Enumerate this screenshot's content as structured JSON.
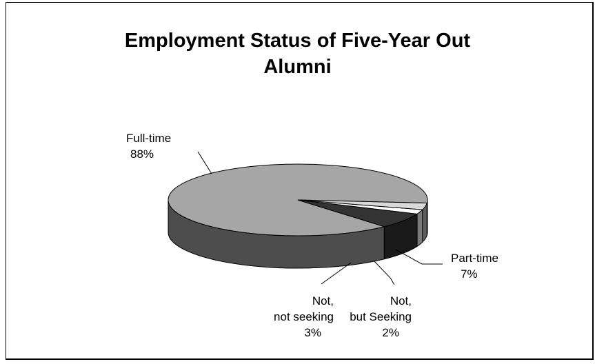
{
  "chart_data": {
    "type": "pie",
    "style": "3d",
    "title": "Employment Status of Five-Year Out\nAlumni",
    "slices": [
      {
        "label": "Full-time",
        "value": 88,
        "value_label": "88%",
        "color": "#a6a6a6",
        "side_color": "#4d4d4d"
      },
      {
        "label": "Part-time",
        "value": 7,
        "value_label": "7%",
        "color": "#333333",
        "side_color": "#1a1a1a"
      },
      {
        "label": "Not,\nbut Seeking",
        "value": 2,
        "value_label": "2%",
        "color": "#ffffff",
        "side_color": "#7a7a7a"
      },
      {
        "label": "Not,\nnot seeking",
        "value": 3,
        "value_label": "3%",
        "color": "#d9d9d9",
        "side_color": "#5e5e5e"
      }
    ],
    "legend": "none"
  }
}
